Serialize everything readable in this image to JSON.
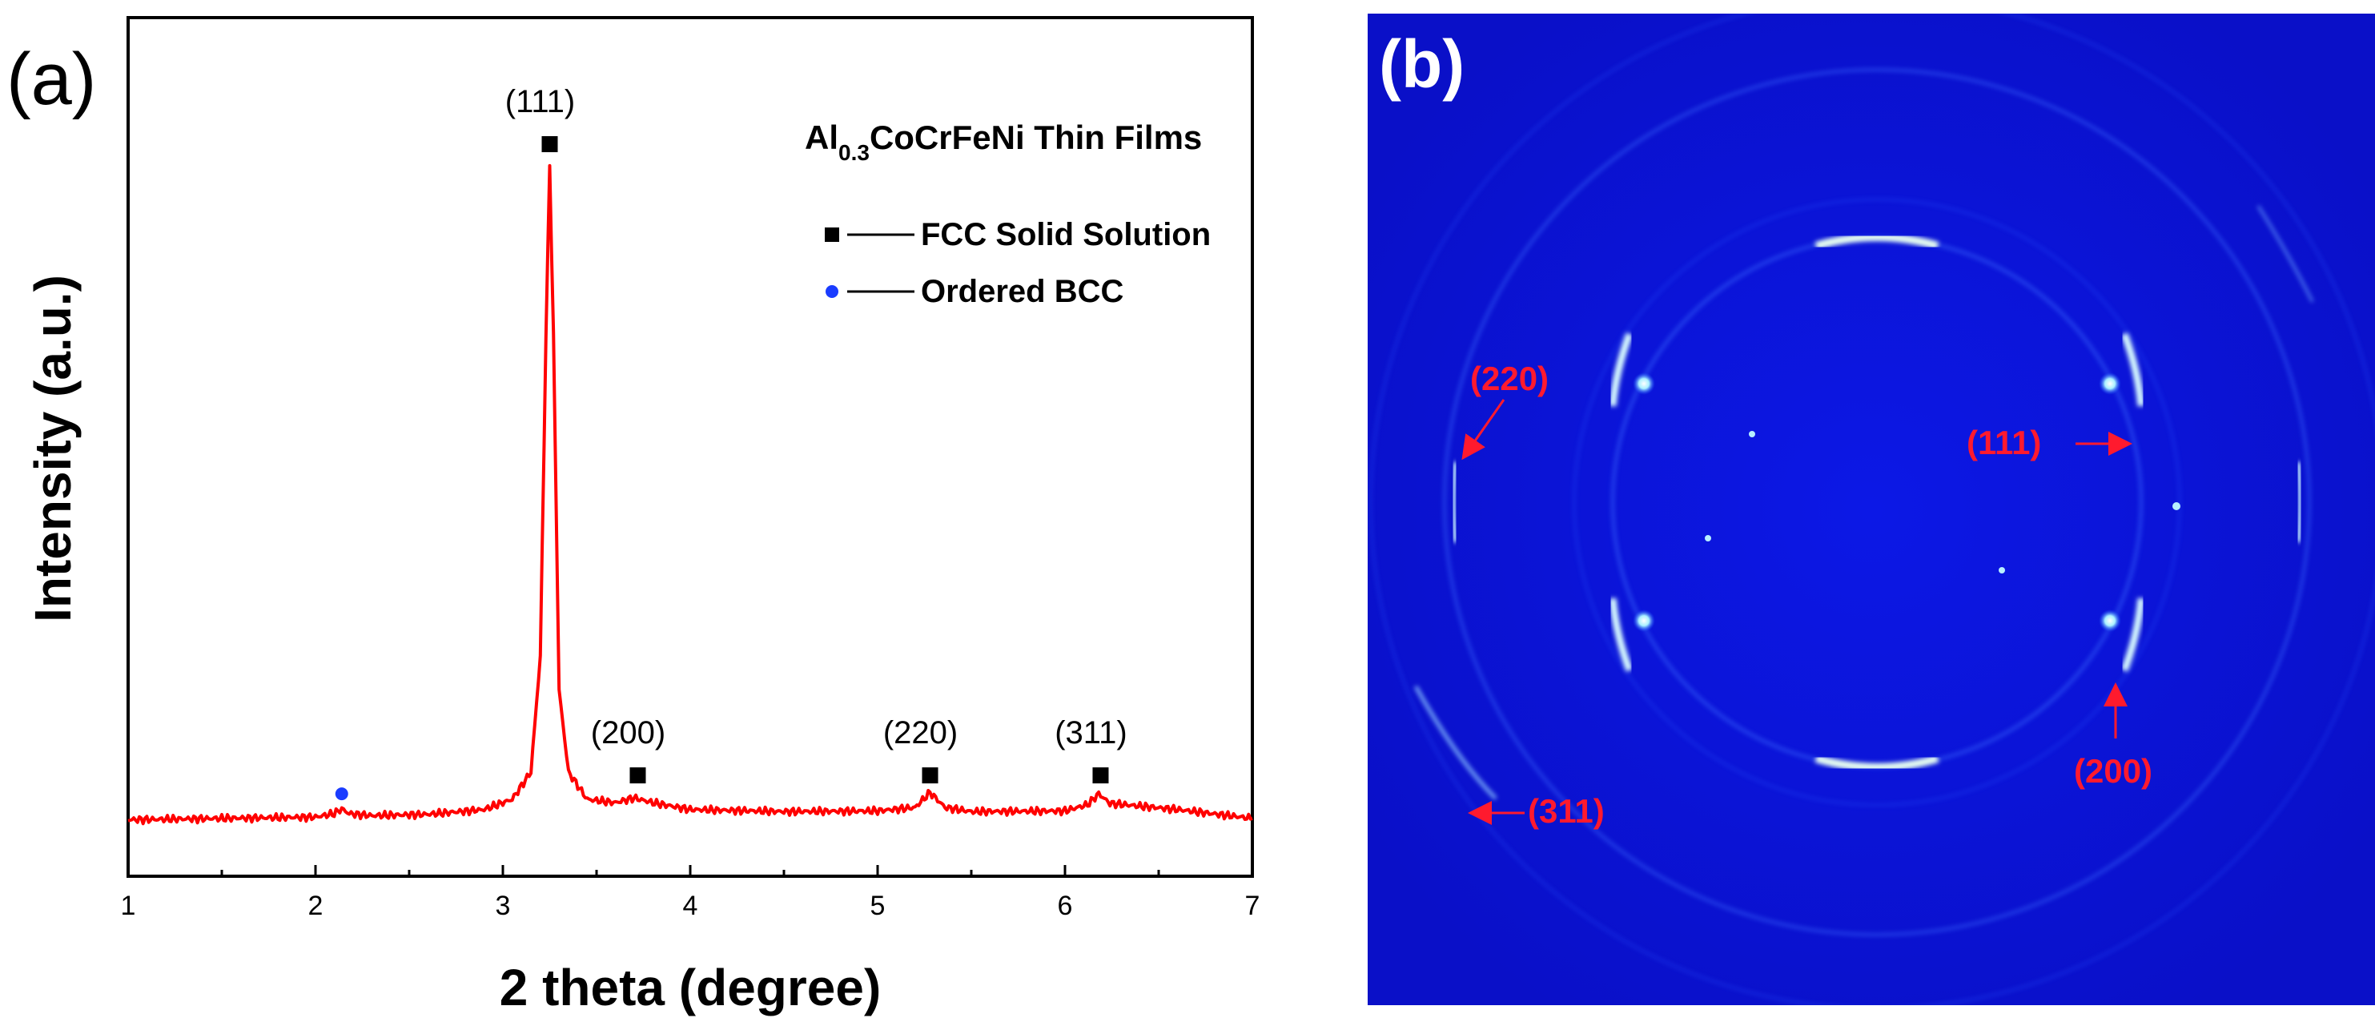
{
  "chart_data": [
    {
      "type": "line",
      "panel_label": "(a)",
      "xlabel": "2 theta (degree)",
      "ylabel": "Intensity (a.u.)",
      "xlim": [
        1,
        7
      ],
      "ylim": [
        0,
        100
      ],
      "x_ticks": [
        1,
        2,
        3,
        4,
        5,
        6,
        7
      ],
      "series": [
        {
          "name": "Al0.3CoCrFeNi thin film XRD",
          "color": "#ff0000",
          "x": [
            1.0,
            1.5,
            2.0,
            2.1,
            2.14,
            2.18,
            2.3,
            2.6,
            2.9,
            3.05,
            3.15,
            3.2,
            3.23,
            3.25,
            3.27,
            3.3,
            3.35,
            3.45,
            3.6,
            3.7,
            3.8,
            4.0,
            4.5,
            5.0,
            5.2,
            5.28,
            5.36,
            5.5,
            6.0,
            6.12,
            6.18,
            6.24,
            6.4,
            6.6,
            7.0
          ],
          "values": [
            1.0,
            1.2,
            1.4,
            1.9,
            2.6,
            1.9,
            1.6,
            1.8,
            2.5,
            4.0,
            8.0,
            25.0,
            72.0,
            97.0,
            72.0,
            20.0,
            8.0,
            4.0,
            3.5,
            4.2,
            3.5,
            2.5,
            2.2,
            2.3,
            2.8,
            5.0,
            2.8,
            2.2,
            2.3,
            3.2,
            4.8,
            3.4,
            3.0,
            2.5,
            1.2
          ]
        }
      ],
      "legend": {
        "title_parts": [
          "Al",
          "0.3",
          "CoCrFeNi Thin Films"
        ],
        "entries": [
          {
            "label": "FCC Solid Solution",
            "marker": "square",
            "color": "#000000"
          },
          {
            "label": "Ordered BCC",
            "marker": "circle",
            "color": "#1a3cff"
          }
        ]
      },
      "peak_markers": [
        {
          "x": 3.25,
          "y": 100,
          "marker": "square",
          "label": "(111)"
        },
        {
          "x": 3.72,
          "y": 7.5,
          "marker": "square",
          "label": "(200)"
        },
        {
          "x": 5.28,
          "y": 7.5,
          "marker": "square",
          "label": "(220)"
        },
        {
          "x": 6.19,
          "y": 7.5,
          "marker": "square",
          "label": "(311)"
        },
        {
          "x": 2.14,
          "y": 4.8,
          "marker": "circle",
          "label": ""
        }
      ]
    },
    {
      "type": "diffraction-pattern",
      "panel_label": "(b)",
      "background": "#0a14d8",
      "ring_labels": [
        "(111)",
        "(200)",
        "(220)",
        "(311)"
      ],
      "label_color": "#ff1a2e"
    }
  ]
}
